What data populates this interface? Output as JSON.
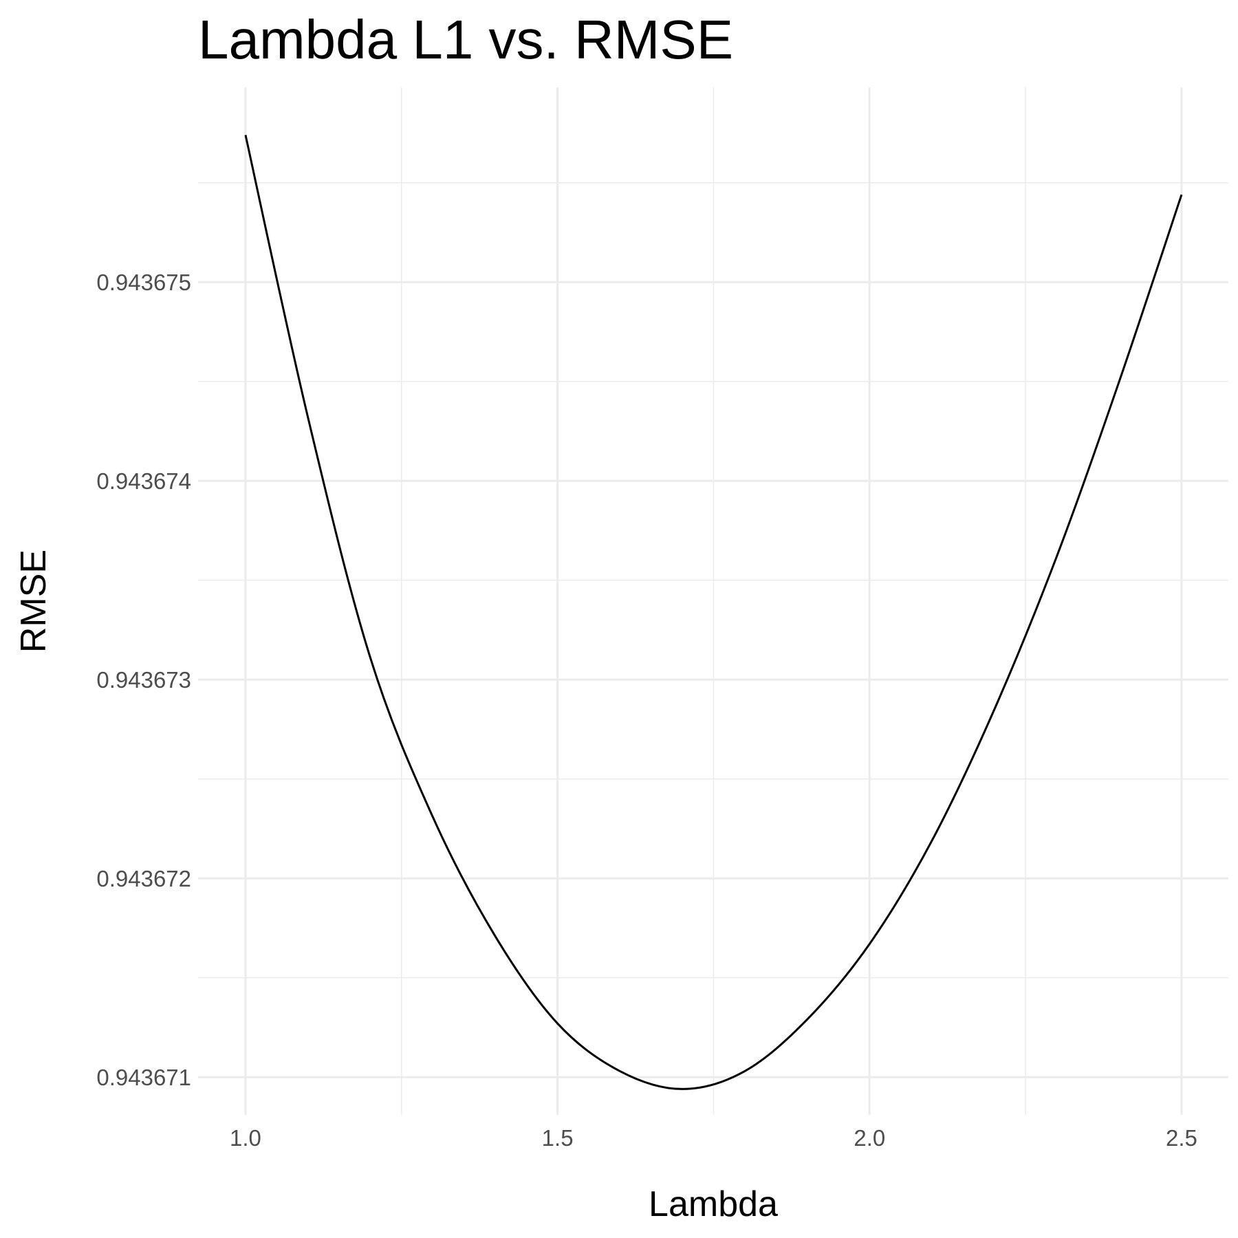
{
  "chart_data": {
    "type": "line",
    "title": "Lambda L1 vs. RMSE",
    "x_label": "Lambda",
    "y_label": "RMSE",
    "x": [
      1.0,
      1.1,
      1.2,
      1.3,
      1.4,
      1.5,
      1.6,
      1.7,
      1.8,
      1.9,
      2.0,
      2.1,
      2.2,
      2.3,
      2.4,
      2.5
    ],
    "series": [
      {
        "name": "RMSE",
        "color": "#000000",
        "values": [
          0.94367574,
          0.94367432,
          0.94367311,
          0.94367231,
          0.94367171,
          0.94367127,
          0.94367103,
          0.94367094,
          0.94367103,
          0.94367129,
          0.94367167,
          0.94367219,
          0.94367285,
          0.94367362,
          0.9436745,
          0.94367544
        ]
      }
    ],
    "xlim": [
      0.924,
      2.575
    ],
    "ylim": [
      0.94367081,
      0.94367598
    ],
    "xticks": [
      {
        "value": 1.0,
        "label": "1.0"
      },
      1.5,
      {
        "value": 2.0,
        "label": "2.0"
      },
      2.5
    ],
    "yticks": [
      0.943671,
      0.943672,
      0.943673,
      0.943674,
      0.943675
    ],
    "x_minor_ticks": [
      1.25,
      1.75,
      2.25
    ],
    "y_minor_ticks": [
      0.9436715,
      0.9436725,
      0.9436735,
      0.9436745,
      0.9436755
    ],
    "grid": true
  }
}
